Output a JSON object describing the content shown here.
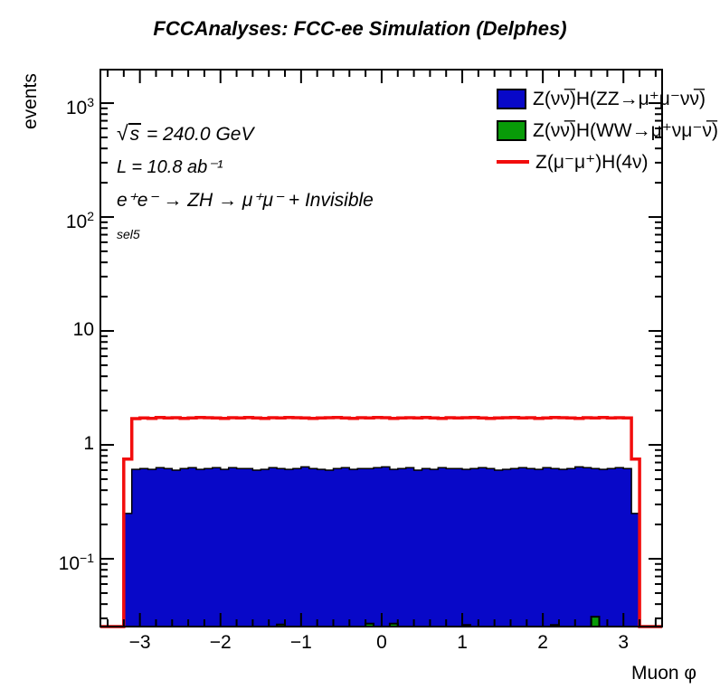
{
  "header": {
    "title": "FCCAnalyses: FCC-ee Simulation (Delphes)"
  },
  "axes": {
    "y_title": "events",
    "x_title": "Muon φ"
  },
  "annotations": {
    "sqrt_symbol": "√",
    "sqrt_argument": "s",
    "energy_rest": " = 240.0 GeV",
    "luminosity": "L = 10.8 ab⁻¹",
    "process": "e⁺e⁻ → ZH → μ⁺μ⁻ + Invisible",
    "selection": "sel5"
  },
  "colors": {
    "zz_fill": "#0808c8",
    "ww_fill": "#089b08",
    "signal_line": "#f20d0d",
    "axis": "#000000"
  },
  "legend": [
    {
      "label": "Z(νν̅)H(ZZ→μ⁺μ⁻νν̅)",
      "marker": "box",
      "color": "#0808c8"
    },
    {
      "label": "Z(νν̅)H(WW→μ⁺νμ⁻ν̅)",
      "marker": "box",
      "color": "#089b08"
    },
    {
      "label": "Z(μ⁻μ⁺)H(4ν)",
      "marker": "line",
      "color": "#f20d0d"
    }
  ],
  "chart_data": {
    "type": "bar",
    "subtype": "step-histogram-overlay",
    "title": "FCCAnalyses: FCC-ee Simulation (Delphes)",
    "xlabel": "Muon φ",
    "ylabel": "events",
    "yscale": "log",
    "xlim": [
      -3.49,
      3.48
    ],
    "ylim": [
      0.0254,
      1968
    ],
    "grid": false,
    "legend_position": "top-right",
    "bin_edges": {
      "start": -3.2,
      "width": 0.1,
      "count": 64
    },
    "x_major_ticks": [
      -3,
      -2,
      -1,
      0,
      1,
      2,
      3
    ],
    "x_tick_labels": [
      "−3",
      "−2",
      "−1",
      "0",
      "1",
      "2",
      "3"
    ],
    "x_minor_step": 0.2,
    "y_major_ticks": [
      {
        "v": 1000,
        "base": "10",
        "exp": "3"
      },
      {
        "v": 100,
        "base": "10",
        "exp": "2"
      },
      {
        "v": 10,
        "base": "10",
        "exp": ""
      },
      {
        "v": 1,
        "base": "1",
        "exp": ""
      },
      {
        "v": 0.1,
        "base": "10",
        "exp": "−1"
      }
    ],
    "series": [
      {
        "name": "Z(νν̅)H(ZZ→μ⁺μ⁻νν̅)",
        "style": "fill",
        "color": "#0808c8",
        "values": [
          0.25,
          0.61,
          0.62,
          0.61,
          0.63,
          0.62,
          0.6,
          0.62,
          0.63,
          0.61,
          0.62,
          0.63,
          0.61,
          0.63,
          0.62,
          0.62,
          0.6,
          0.61,
          0.63,
          0.62,
          0.61,
          0.62,
          0.64,
          0.62,
          0.61,
          0.6,
          0.62,
          0.63,
          0.61,
          0.62,
          0.62,
          0.63,
          0.64,
          0.61,
          0.62,
          0.63,
          0.6,
          0.62,
          0.61,
          0.63,
          0.62,
          0.62,
          0.61,
          0.62,
          0.63,
          0.62,
          0.6,
          0.61,
          0.62,
          0.63,
          0.62,
          0.61,
          0.63,
          0.62,
          0.61,
          0.62,
          0.64,
          0.63,
          0.62,
          0.61,
          0.62,
          0.63,
          0.62,
          0.25
        ]
      },
      {
        "name": "Z(νν̅)H(WW→μ⁺νμ⁻ν̅)",
        "style": "fill",
        "color": "#089b08",
        "values": [
          0,
          0,
          0,
          0,
          0,
          0,
          0,
          0,
          0,
          0,
          0,
          0,
          0,
          0,
          0,
          0,
          0,
          0,
          0,
          0.0265,
          0,
          0,
          0,
          0,
          0,
          0,
          0,
          0,
          0,
          0,
          0.027,
          0,
          0,
          0.027,
          0,
          0,
          0,
          0,
          0,
          0,
          0,
          0,
          0.0262,
          0,
          0,
          0,
          0,
          0,
          0,
          0,
          0,
          0,
          0,
          0.0262,
          0,
          0,
          0,
          0,
          0.031,
          0,
          0,
          0,
          0,
          0
        ]
      },
      {
        "name": "Z(μ⁻μ⁺)H(4ν)",
        "style": "line",
        "color": "#f20d0d",
        "line_width": 3.5,
        "extend_baseline": true,
        "values": [
          0.75,
          1.7,
          1.72,
          1.71,
          1.74,
          1.72,
          1.73,
          1.71,
          1.72,
          1.74,
          1.73,
          1.72,
          1.71,
          1.73,
          1.72,
          1.74,
          1.72,
          1.71,
          1.73,
          1.72,
          1.74,
          1.73,
          1.72,
          1.71,
          1.72,
          1.73,
          1.74,
          1.72,
          1.71,
          1.73,
          1.72,
          1.74,
          1.73,
          1.71,
          1.72,
          1.73,
          1.72,
          1.74,
          1.72,
          1.71,
          1.73,
          1.72,
          1.73,
          1.74,
          1.72,
          1.71,
          1.72,
          1.73,
          1.74,
          1.72,
          1.73,
          1.71,
          1.72,
          1.74,
          1.73,
          1.72,
          1.71,
          1.73,
          1.72,
          1.74,
          1.72,
          1.73,
          1.72,
          0.75
        ]
      }
    ]
  }
}
